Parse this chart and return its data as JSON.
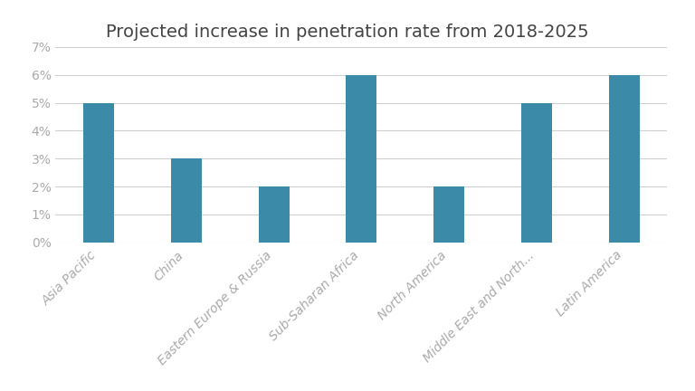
{
  "title": "Projected increase in penetration rate from 2018-2025",
  "categories": [
    "Asia Pacific",
    "China",
    "Eastern Europe & Russia",
    "Sub-Saharan Africa",
    "North America",
    "Middle East and North...",
    "Latin America"
  ],
  "values": [
    5,
    3,
    2,
    6,
    2,
    5,
    6
  ],
  "bar_color": "#3a8aa8",
  "ylim": [
    0,
    7
  ],
  "yticks": [
    0,
    1,
    2,
    3,
    4,
    5,
    6,
    7
  ],
  "ytick_labels": [
    "0%",
    "1%",
    "2%",
    "3%",
    "4%",
    "5%",
    "6%",
    "7%"
  ],
  "background_color": "#ffffff",
  "title_fontsize": 14,
  "tick_label_fontsize": 10,
  "tick_label_color": "#aaaaaa",
  "bar_width": 0.35,
  "grid_color": "#d0d0d0",
  "title_color": "#444444"
}
